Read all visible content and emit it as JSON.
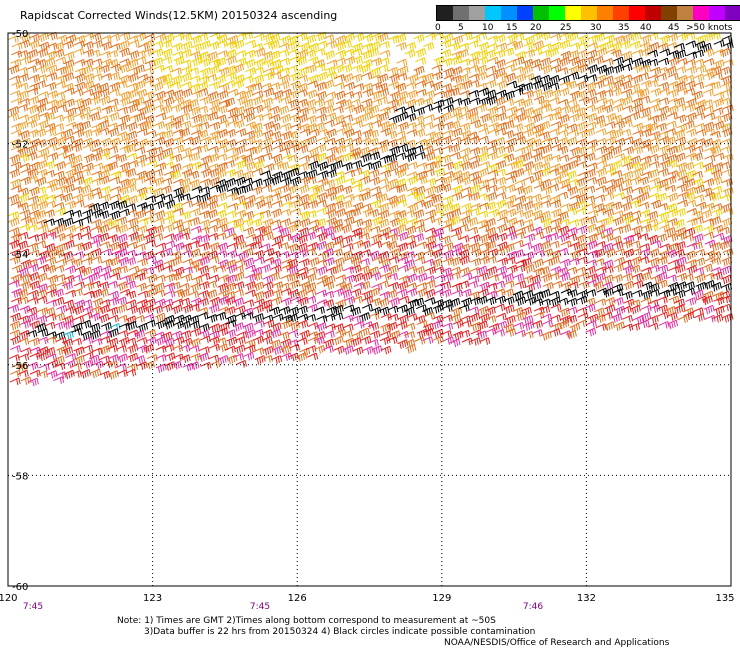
{
  "title": "Rapidscat Corrected Winds(12.5KM) 20150324 ascending",
  "legend": {
    "colors": [
      "#202020",
      "#707070",
      "#a0a0a0",
      "#00c8ff",
      "#0090ff",
      "#0040ff",
      "#00c000",
      "#00ff00",
      "#ffff00",
      "#ffc000",
      "#ff8000",
      "#ff4000",
      "#ff0000",
      "#c00000",
      "#804000",
      "#c08040",
      "#ff00c0",
      "#c000ff",
      "#8000c0",
      "#400080"
    ],
    "labels": [
      "0",
      "5",
      "10",
      "15",
      "20",
      "25",
      "30",
      "35",
      "40",
      "45",
      ">50 knots"
    ]
  },
  "map": {
    "lon_ticks": [
      "120",
      "123",
      "126",
      "129",
      "132",
      "135"
    ],
    "lat_ticks": [
      "-50",
      "-52",
      "-54",
      "-56",
      "-58",
      "-60"
    ],
    "times": [
      "7:45",
      "7:45",
      "7:46"
    ]
  },
  "notes": [
    "Note: 1) Times are GMT 2)Times along bottom correspond to measurement at ~50S",
    "3)Data buffer is 22 hrs from 20150324 4) Black circles indicate possible contamination"
  ],
  "credit": "NOAA/NESDIS/Office of Research and Applications",
  "colors": {
    "yellow": "#f0d000",
    "light_orange": "#f0a030",
    "orange": "#e07020",
    "red": "#e02020",
    "magenta": "#e030a0",
    "purple": "#b030d0",
    "black": "#000000",
    "cyan": "#20b0d0",
    "time_label": "#800080"
  }
}
